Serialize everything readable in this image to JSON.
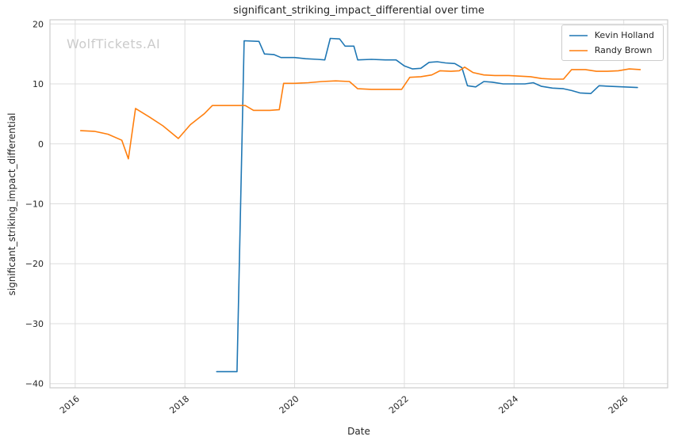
{
  "watermark": "WolfTickets.AI",
  "chart_data": {
    "type": "line",
    "title": "significant_striking_impact_differential over time",
    "xlabel": "Date",
    "ylabel": "significant_striking_impact_differential",
    "xlim": [
      2015.54,
      2026.8
    ],
    "ylim": [
      -40.7,
      20.7
    ],
    "xticks": [
      2016,
      2018,
      2020,
      2022,
      2024,
      2026
    ],
    "yticks": [
      -40,
      -30,
      -20,
      -10,
      0,
      10,
      20
    ],
    "grid": true,
    "legend_position": "upper right",
    "colors": {
      "background": "#ffffff",
      "grid": "#dddddd",
      "spine": "#cccccc",
      "text": "#262626",
      "watermark": "#cbcbcb"
    },
    "series": [
      {
        "name": "Kevin Holland",
        "color": "#1f77b4",
        "x": [
          2018.58,
          2018.95,
          2019.08,
          2019.35,
          2019.45,
          2019.62,
          2019.75,
          2020.0,
          2020.2,
          2020.42,
          2020.55,
          2020.65,
          2020.82,
          2020.92,
          2021.08,
          2021.15,
          2021.4,
          2021.65,
          2021.85,
          2022.0,
          2022.15,
          2022.3,
          2022.45,
          2022.6,
          2022.75,
          2022.92,
          2023.05,
          2023.15,
          2023.3,
          2023.45,
          2023.6,
          2023.8,
          2024.0,
          2024.2,
          2024.35,
          2024.5,
          2024.7,
          2024.9,
          2025.05,
          2025.2,
          2025.4,
          2025.55,
          2025.75,
          2026.0,
          2026.25
        ],
        "y": [
          -38,
          -38,
          17.2,
          17.1,
          15.0,
          14.9,
          14.4,
          14.4,
          14.2,
          14.1,
          14.0,
          17.6,
          17.5,
          16.3,
          16.3,
          14.0,
          14.1,
          14.0,
          14.0,
          13.0,
          12.5,
          12.6,
          13.6,
          13.7,
          13.5,
          13.4,
          12.7,
          9.7,
          9.5,
          10.4,
          10.3,
          10.0,
          10.0,
          10.0,
          10.2,
          9.6,
          9.3,
          9.2,
          8.9,
          8.5,
          8.4,
          9.7,
          9.6,
          9.5,
          9.4
        ]
      },
      {
        "name": "Randy Brown",
        "color": "#ff7f0e",
        "x": [
          2016.1,
          2016.35,
          2016.6,
          2016.85,
          2016.97,
          2017.1,
          2017.35,
          2017.6,
          2017.88,
          2018.1,
          2018.35,
          2018.5,
          2018.8,
          2019.1,
          2019.25,
          2019.55,
          2019.72,
          2019.8,
          2020.0,
          2020.25,
          2020.5,
          2020.75,
          2021.0,
          2021.15,
          2021.4,
          2021.7,
          2021.95,
          2022.1,
          2022.3,
          2022.5,
          2022.65,
          2022.85,
          2023.0,
          2023.1,
          2023.25,
          2023.45,
          2023.65,
          2023.9,
          2024.1,
          2024.3,
          2024.5,
          2024.7,
          2024.9,
          2025.05,
          2025.3,
          2025.5,
          2025.7,
          2025.9,
          2026.1,
          2026.3
        ],
        "y": [
          2.2,
          2.1,
          1.6,
          0.6,
          -2.5,
          5.9,
          4.5,
          3.0,
          0.9,
          3.2,
          5.0,
          6.4,
          6.4,
          6.4,
          5.6,
          5.6,
          5.7,
          10.1,
          10.1,
          10.2,
          10.4,
          10.5,
          10.4,
          9.2,
          9.1,
          9.1,
          9.1,
          11.1,
          11.2,
          11.5,
          12.2,
          12.1,
          12.2,
          12.8,
          11.9,
          11.5,
          11.4,
          11.4,
          11.3,
          11.2,
          10.9,
          10.8,
          10.8,
          12.4,
          12.4,
          12.1,
          12.1,
          12.2,
          12.5,
          12.4
        ]
      }
    ]
  }
}
